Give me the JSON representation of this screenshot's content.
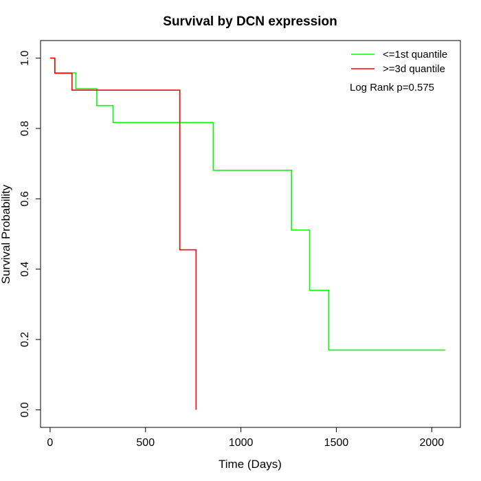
{
  "chart_data": {
    "type": "line",
    "title": "Survival by DCN expression",
    "xlabel": "Time (Days)",
    "ylabel": "Survival Probability",
    "xlim": [
      -50,
      2150
    ],
    "ylim": [
      -0.05,
      1.05
    ],
    "x_ticks": [
      0,
      500,
      1000,
      1500,
      2000
    ],
    "y_ticks": [
      0.0,
      0.2,
      0.4,
      0.6,
      0.8,
      1.0
    ],
    "x_tick_labels": [
      "0",
      "500",
      "1000",
      "1500",
      "2000"
    ],
    "y_tick_labels": [
      "0.0",
      "0.2",
      "0.4",
      "0.6",
      "0.8",
      "1.0"
    ],
    "grid": false,
    "legend_position": "top-right",
    "annotation": "Log Rank p=0.575",
    "series": [
      {
        "name": "<=1st quantile",
        "color": "#00ff00",
        "points": [
          [
            0,
            1.0
          ],
          [
            25,
            0.958
          ],
          [
            135,
            0.913
          ],
          [
            245,
            0.865
          ],
          [
            330,
            0.817
          ],
          [
            855,
            0.681
          ],
          [
            1265,
            0.511
          ],
          [
            1360,
            0.34
          ],
          [
            1460,
            0.17
          ],
          [
            2070,
            0.17
          ]
        ]
      },
      {
        "name": ">=3d quantile",
        "color": "#ff0000",
        "points": [
          [
            0,
            1.0
          ],
          [
            25,
            0.957
          ],
          [
            115,
            0.909
          ],
          [
            680,
            0.455
          ],
          [
            765,
            0.0
          ]
        ]
      }
    ]
  }
}
